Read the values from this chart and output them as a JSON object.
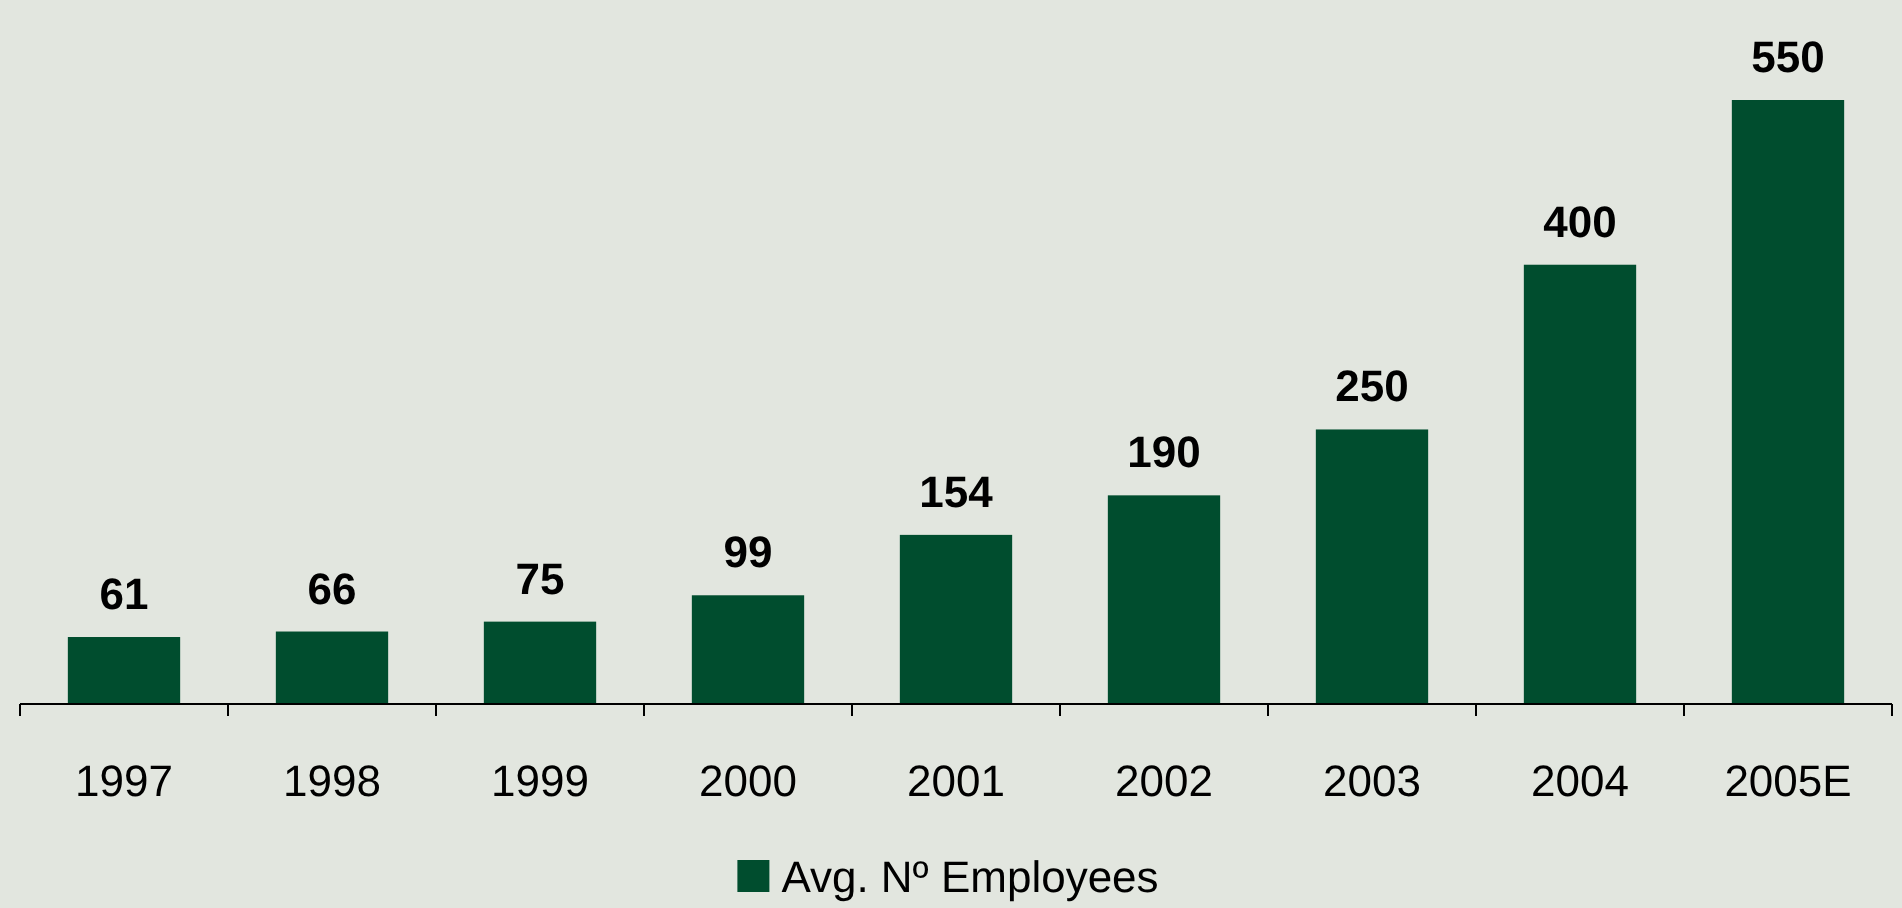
{
  "chart_data": {
    "type": "bar",
    "categories": [
      "1997",
      "1998",
      "1999",
      "2000",
      "2001",
      "2002",
      "2003",
      "2004",
      "2005E"
    ],
    "series": [
      {
        "name": "Avg. Nº Employees",
        "color": "#004d2e",
        "values": [
          61,
          66,
          75,
          99,
          154,
          190,
          250,
          400,
          550
        ]
      }
    ],
    "data_labels": true,
    "legend": "bottom"
  }
}
